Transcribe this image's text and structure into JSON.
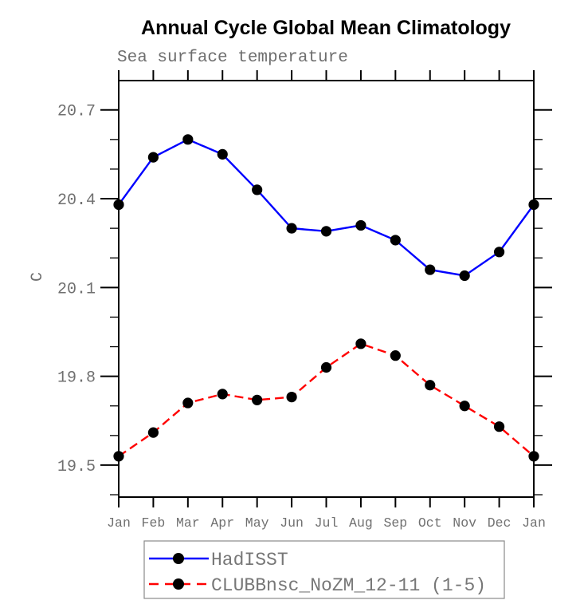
{
  "title": "Annual Cycle Global Mean Climatology",
  "colors": {
    "background": "#ffffff",
    "frame": "#000000",
    "marker": "#000000",
    "hadisst_line": "#0000ff",
    "clubb_line": "#ff0000",
    "gray_text": "#707070",
    "legend_border": "#8a8a8a"
  },
  "chart_data": {
    "type": "line",
    "title": "Annual Cycle Global Mean Climatology",
    "subtitle": "Sea surface temperature",
    "xlabel": "",
    "ylabel": "C",
    "categories": [
      "Jan",
      "Feb",
      "Mar",
      "Apr",
      "May",
      "Jun",
      "Jul",
      "Aug",
      "Sep",
      "Oct",
      "Nov",
      "Dec",
      "Jan"
    ],
    "y_major_ticks": [
      19.5,
      19.8,
      20.1,
      20.4,
      20.7
    ],
    "y_minor_step": 0.1,
    "ylim": [
      19.392,
      20.799
    ],
    "grid": false,
    "legend_position": "bottom",
    "series": [
      {
        "name": "HadISST",
        "color": "#0000ff",
        "line_style": "solid",
        "marker": "filled-circle",
        "marker_color": "#000000",
        "values": [
          20.38,
          20.54,
          20.6,
          20.55,
          20.43,
          20.3,
          20.29,
          20.31,
          20.26,
          20.16,
          20.14,
          20.22,
          20.38
        ]
      },
      {
        "name": "CLUBBnsc_NoZM_12-11 (1-5)",
        "color": "#ff0000",
        "line_style": "dashed",
        "marker": "filled-circle",
        "marker_color": "#000000",
        "values": [
          19.53,
          19.61,
          19.71,
          19.74,
          19.72,
          19.73,
          19.83,
          19.91,
          19.87,
          19.77,
          19.7,
          19.63,
          19.53
        ]
      }
    ]
  }
}
